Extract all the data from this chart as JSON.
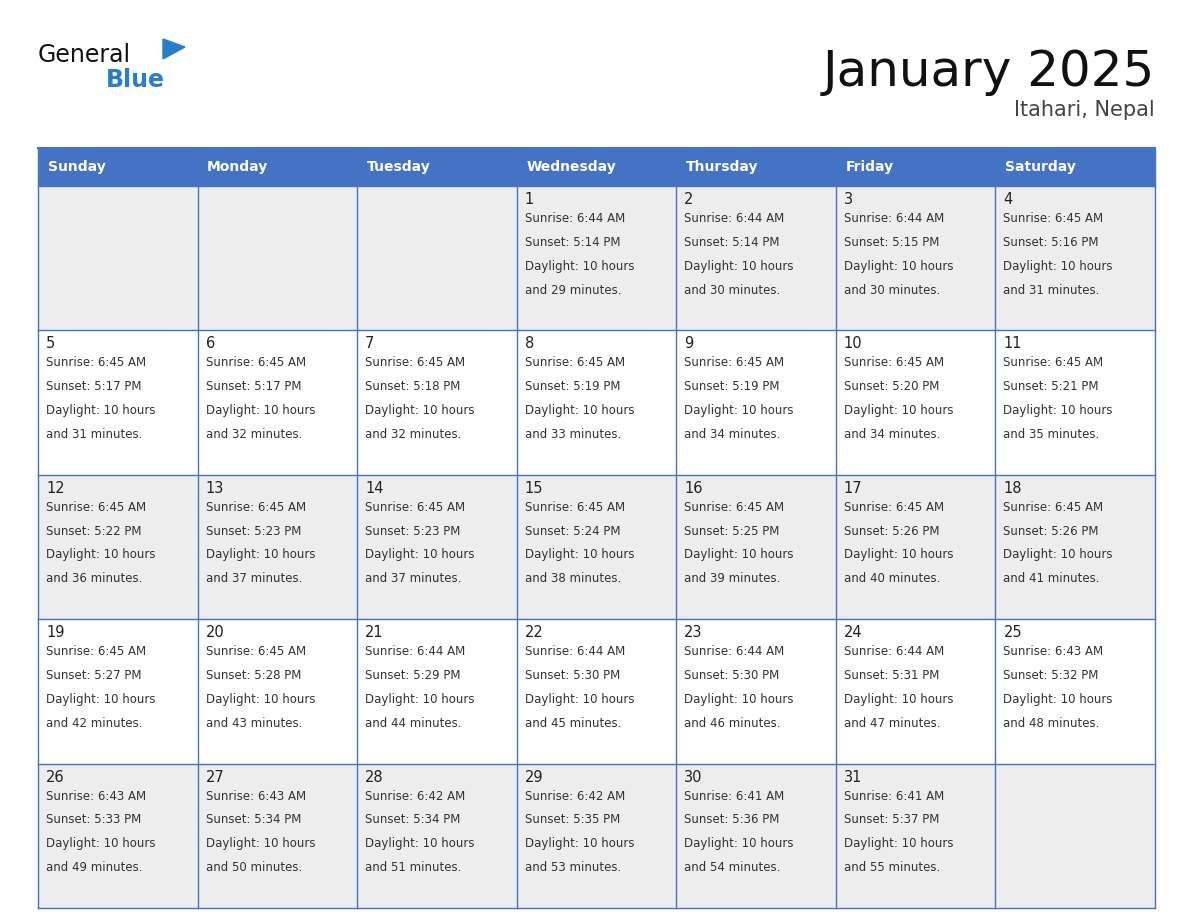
{
  "title": "January 2025",
  "subtitle": "Itahari, Nepal",
  "header_color": "#4472C4",
  "header_text_color": "#FFFFFF",
  "days_of_week": [
    "Sunday",
    "Monday",
    "Tuesday",
    "Wednesday",
    "Thursday",
    "Friday",
    "Saturday"
  ],
  "grid_line_color": "#4472C4",
  "cell_bg_white": "#FFFFFF",
  "cell_bg_gray": "#EDEDED",
  "day_num_color": "#222222",
  "text_color": "#333333",
  "title_color": "#111111",
  "subtitle_color": "#444444",
  "logo_general_color": "#111111",
  "logo_blue_color": "#2A7DC9",
  "calendar_data": [
    [
      null,
      null,
      null,
      {
        "day": 1,
        "sunrise": "6:44 AM",
        "sunset": "5:14 PM",
        "daylight": "10 hours and 29 minutes."
      },
      {
        "day": 2,
        "sunrise": "6:44 AM",
        "sunset": "5:14 PM",
        "daylight": "10 hours and 30 minutes."
      },
      {
        "day": 3,
        "sunrise": "6:44 AM",
        "sunset": "5:15 PM",
        "daylight": "10 hours and 30 minutes."
      },
      {
        "day": 4,
        "sunrise": "6:45 AM",
        "sunset": "5:16 PM",
        "daylight": "10 hours and 31 minutes."
      }
    ],
    [
      {
        "day": 5,
        "sunrise": "6:45 AM",
        "sunset": "5:17 PM",
        "daylight": "10 hours and 31 minutes."
      },
      {
        "day": 6,
        "sunrise": "6:45 AM",
        "sunset": "5:17 PM",
        "daylight": "10 hours and 32 minutes."
      },
      {
        "day": 7,
        "sunrise": "6:45 AM",
        "sunset": "5:18 PM",
        "daylight": "10 hours and 32 minutes."
      },
      {
        "day": 8,
        "sunrise": "6:45 AM",
        "sunset": "5:19 PM",
        "daylight": "10 hours and 33 minutes."
      },
      {
        "day": 9,
        "sunrise": "6:45 AM",
        "sunset": "5:19 PM",
        "daylight": "10 hours and 34 minutes."
      },
      {
        "day": 10,
        "sunrise": "6:45 AM",
        "sunset": "5:20 PM",
        "daylight": "10 hours and 34 minutes."
      },
      {
        "day": 11,
        "sunrise": "6:45 AM",
        "sunset": "5:21 PM",
        "daylight": "10 hours and 35 minutes."
      }
    ],
    [
      {
        "day": 12,
        "sunrise": "6:45 AM",
        "sunset": "5:22 PM",
        "daylight": "10 hours and 36 minutes."
      },
      {
        "day": 13,
        "sunrise": "6:45 AM",
        "sunset": "5:23 PM",
        "daylight": "10 hours and 37 minutes."
      },
      {
        "day": 14,
        "sunrise": "6:45 AM",
        "sunset": "5:23 PM",
        "daylight": "10 hours and 37 minutes."
      },
      {
        "day": 15,
        "sunrise": "6:45 AM",
        "sunset": "5:24 PM",
        "daylight": "10 hours and 38 minutes."
      },
      {
        "day": 16,
        "sunrise": "6:45 AM",
        "sunset": "5:25 PM",
        "daylight": "10 hours and 39 minutes."
      },
      {
        "day": 17,
        "sunrise": "6:45 AM",
        "sunset": "5:26 PM",
        "daylight": "10 hours and 40 minutes."
      },
      {
        "day": 18,
        "sunrise": "6:45 AM",
        "sunset": "5:26 PM",
        "daylight": "10 hours and 41 minutes."
      }
    ],
    [
      {
        "day": 19,
        "sunrise": "6:45 AM",
        "sunset": "5:27 PM",
        "daylight": "10 hours and 42 minutes."
      },
      {
        "day": 20,
        "sunrise": "6:45 AM",
        "sunset": "5:28 PM",
        "daylight": "10 hours and 43 minutes."
      },
      {
        "day": 21,
        "sunrise": "6:44 AM",
        "sunset": "5:29 PM",
        "daylight": "10 hours and 44 minutes."
      },
      {
        "day": 22,
        "sunrise": "6:44 AM",
        "sunset": "5:30 PM",
        "daylight": "10 hours and 45 minutes."
      },
      {
        "day": 23,
        "sunrise": "6:44 AM",
        "sunset": "5:30 PM",
        "daylight": "10 hours and 46 minutes."
      },
      {
        "day": 24,
        "sunrise": "6:44 AM",
        "sunset": "5:31 PM",
        "daylight": "10 hours and 47 minutes."
      },
      {
        "day": 25,
        "sunrise": "6:43 AM",
        "sunset": "5:32 PM",
        "daylight": "10 hours and 48 minutes."
      }
    ],
    [
      {
        "day": 26,
        "sunrise": "6:43 AM",
        "sunset": "5:33 PM",
        "daylight": "10 hours and 49 minutes."
      },
      {
        "day": 27,
        "sunrise": "6:43 AM",
        "sunset": "5:34 PM",
        "daylight": "10 hours and 50 minutes."
      },
      {
        "day": 28,
        "sunrise": "6:42 AM",
        "sunset": "5:34 PM",
        "daylight": "10 hours and 51 minutes."
      },
      {
        "day": 29,
        "sunrise": "6:42 AM",
        "sunset": "5:35 PM",
        "daylight": "10 hours and 53 minutes."
      },
      {
        "day": 30,
        "sunrise": "6:41 AM",
        "sunset": "5:36 PM",
        "daylight": "10 hours and 54 minutes."
      },
      {
        "day": 31,
        "sunrise": "6:41 AM",
        "sunset": "5:37 PM",
        "daylight": "10 hours and 55 minutes."
      },
      null
    ]
  ],
  "row_bg_colors": [
    "#EDEDED",
    "#FFFFFF",
    "#EDEDED",
    "#FFFFFF",
    "#EDEDED"
  ]
}
